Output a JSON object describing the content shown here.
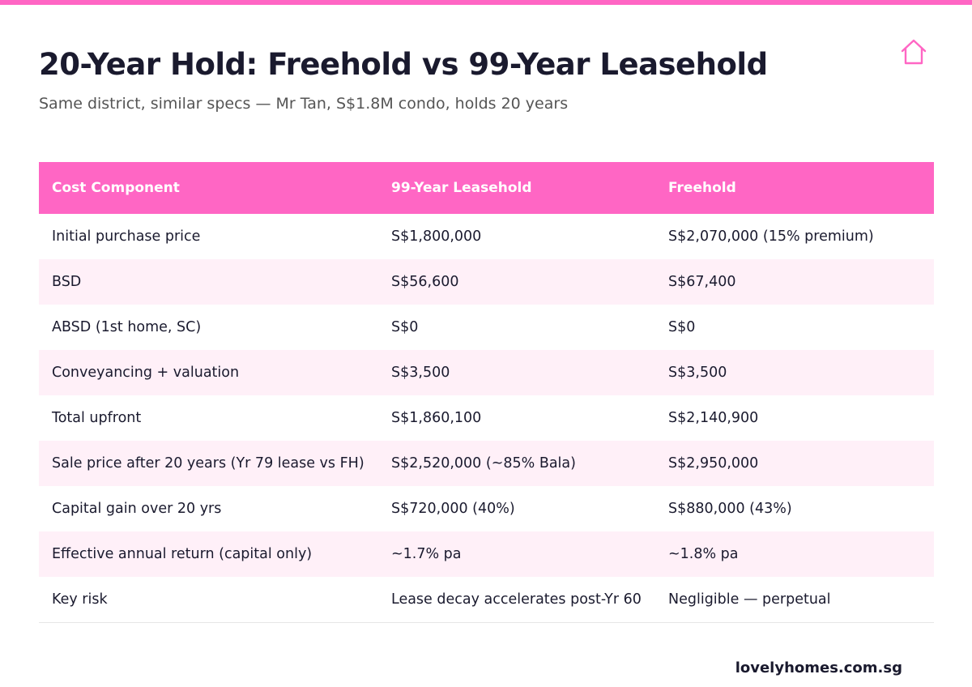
{
  "colors": {
    "accent": "#ff66c4",
    "row_alt": "#fff0f8",
    "title": "#1a1a2e",
    "subtitle": "#555555"
  },
  "icons": {
    "top_right": "house-outline-icon"
  },
  "title": "20-Year Hold: Freehold vs 99-Year Leasehold",
  "subtitle": "Same district, similar specs — Mr Tan, S$1.8M condo, holds 20 years",
  "table": {
    "headers": [
      "Cost Component",
      "99-Year Leasehold",
      "Freehold"
    ],
    "rows": [
      [
        "Initial purchase price",
        "S$1,800,000",
        "S$2,070,000 (15% premium)"
      ],
      [
        "BSD",
        "S$56,600",
        "S$67,400"
      ],
      [
        "ABSD (1st home, SC)",
        "S$0",
        "S$0"
      ],
      [
        "Conveyancing + valuation",
        "S$3,500",
        "S$3,500"
      ],
      [
        "Total upfront",
        "S$1,860,100",
        "S$2,140,900"
      ],
      [
        "Sale price after 20 years (Yr 79 lease vs FH)",
        "S$2,520,000 (~85% Bala)",
        "S$2,950,000"
      ],
      [
        "Capital gain over 20 yrs",
        "S$720,000 (40%)",
        "S$880,000 (43%)"
      ],
      [
        "Effective annual return (capital only)",
        "~1.7% pa",
        "~1.8% pa"
      ],
      [
        "Key risk",
        "Lease decay accelerates post-Yr 60",
        "Negligible — perpetual"
      ]
    ]
  },
  "footer": {
    "brand": "lovelyhomes.com.sg"
  }
}
